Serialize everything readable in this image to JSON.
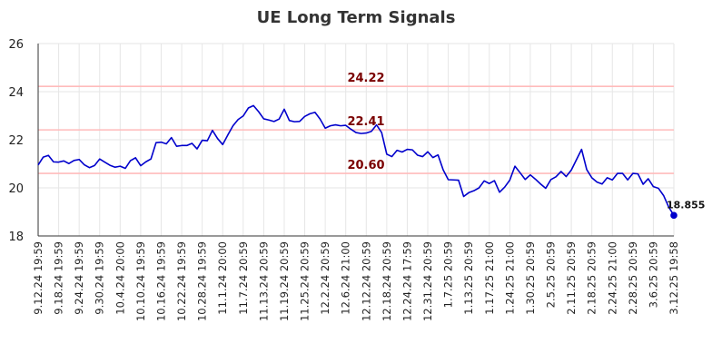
{
  "chart_data": {
    "type": "line",
    "title": "UE Long Term Signals",
    "xlabel": "",
    "ylabel": "",
    "ylim": [
      18,
      26
    ],
    "yticks": [
      "18",
      "20",
      "22",
      "24",
      "26"
    ],
    "grid": true,
    "legend": "none",
    "x_tick_labels": [
      "9.12.24 19:59",
      "9.18.24 19:59",
      "9.24.24 19:59",
      "9.30.24 19:59",
      "10.4.24 20:00",
      "10.10.24 19:59",
      "10.16.24 19:59",
      "10.22.24 19:59",
      "10.28.24 19:59",
      "11.1.24 20:00",
      "11.7.24 20:59",
      "11.13.24 20:59",
      "11.19.24 20:59",
      "11.25.24 20:59",
      "12.2.24 20:59",
      "12.6.24 21:00",
      "12.12.24 20:59",
      "12.18.24 20:59",
      "12.24.24 17:59",
      "12.31.24 20:59",
      "1.7.25 20:59",
      "1.13.25 20:59",
      "1.17.25 21:00",
      "1.24.25 21:00",
      "1.30.25 20:59",
      "2.5.25 20:59",
      "2.11.25 20:59",
      "2.18.25 20:59",
      "2.24.25 21:00",
      "2.28.25 20:59",
      "3.6.25 20:59",
      "3.12.25 19:58"
    ],
    "series": [
      {
        "color": "#0000cc",
        "values": [
          20.95,
          21.28,
          21.35,
          21.08,
          21.07,
          21.12,
          21.01,
          21.14,
          21.18,
          20.96,
          20.84,
          20.93,
          21.2,
          21.07,
          20.94,
          20.86,
          20.9,
          20.81,
          21.13,
          21.25,
          20.92,
          21.08,
          21.2,
          21.88,
          21.9,
          21.83,
          22.09,
          21.73,
          21.76,
          21.76,
          21.85,
          21.62,
          21.98,
          21.96,
          22.39,
          22.05,
          21.8,
          22.2,
          22.58,
          22.84,
          22.99,
          23.32,
          23.42,
          23.17,
          22.87,
          22.82,
          22.76,
          22.86,
          23.27,
          22.8,
          22.75,
          22.76,
          22.97,
          23.08,
          23.14,
          22.86,
          22.48,
          22.58,
          22.62,
          22.58,
          22.6,
          22.44,
          22.3,
          22.26,
          22.28,
          22.35,
          22.62,
          22.3,
          21.4,
          21.3,
          21.56,
          21.49,
          21.6,
          21.58,
          21.36,
          21.3,
          21.5,
          21.26,
          21.37,
          20.75,
          20.34,
          20.33,
          20.32,
          19.64,
          19.8,
          19.88,
          20.0,
          20.29,
          20.18,
          20.3,
          19.82,
          20.03,
          20.32,
          20.9,
          20.63,
          20.35,
          20.54,
          20.36,
          20.16,
          19.98,
          20.34,
          20.46,
          20.68,
          20.47,
          20.74,
          21.17,
          21.6,
          20.76,
          20.42,
          20.24,
          20.16,
          20.42,
          20.33,
          20.6,
          20.6,
          20.33,
          20.6,
          20.58,
          20.15,
          20.38,
          20.05,
          19.98,
          19.68,
          19.2,
          18.855
        ]
      }
    ],
    "hlines": [
      {
        "value": 24.22,
        "label": "24.22",
        "color": "#ffbbbb",
        "label_color": "#7a0000"
      },
      {
        "value": 22.41,
        "label": "22.41",
        "color": "#ffbbbb",
        "label_color": "#7a0000"
      },
      {
        "value": 20.6,
        "label": "20.60",
        "color": "#ffbbbb",
        "label_color": "#7a0000"
      }
    ],
    "last_point": {
      "value": 18.855,
      "label": "18.855",
      "color": "#0000cc"
    }
  }
}
